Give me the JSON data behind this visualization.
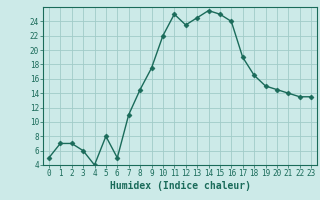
{
  "xlabel": "Humidex (Indice chaleur)",
  "x": [
    0,
    1,
    2,
    3,
    4,
    5,
    6,
    7,
    8,
    9,
    10,
    11,
    12,
    13,
    14,
    15,
    16,
    17,
    18,
    19,
    20,
    21,
    22,
    23
  ],
  "y": [
    5,
    7,
    7,
    6,
    4,
    8,
    5,
    11,
    14.5,
    17.5,
    22,
    25,
    23.5,
    24.5,
    25.5,
    25,
    24,
    19,
    16.5,
    15,
    14.5,
    14,
    13.5,
    13.5
  ],
  "line_color": "#1a6b5a",
  "marker": "D",
  "marker_size": 2.5,
  "line_width": 1.0,
  "bg_color": "#cceae8",
  "grid_color": "#a0ccc8",
  "ylim": [
    4,
    26
  ],
  "xlim": [
    -0.5,
    23.5
  ],
  "yticks": [
    4,
    6,
    8,
    10,
    12,
    14,
    16,
    18,
    20,
    22,
    24
  ],
  "xticks": [
    0,
    1,
    2,
    3,
    4,
    5,
    6,
    7,
    8,
    9,
    10,
    11,
    12,
    13,
    14,
    15,
    16,
    17,
    18,
    19,
    20,
    21,
    22,
    23
  ],
  "tick_fontsize": 5.5,
  "xlabel_fontsize": 7.0,
  "axis_color": "#1a6b5a",
  "spine_color": "#1a6b5a"
}
